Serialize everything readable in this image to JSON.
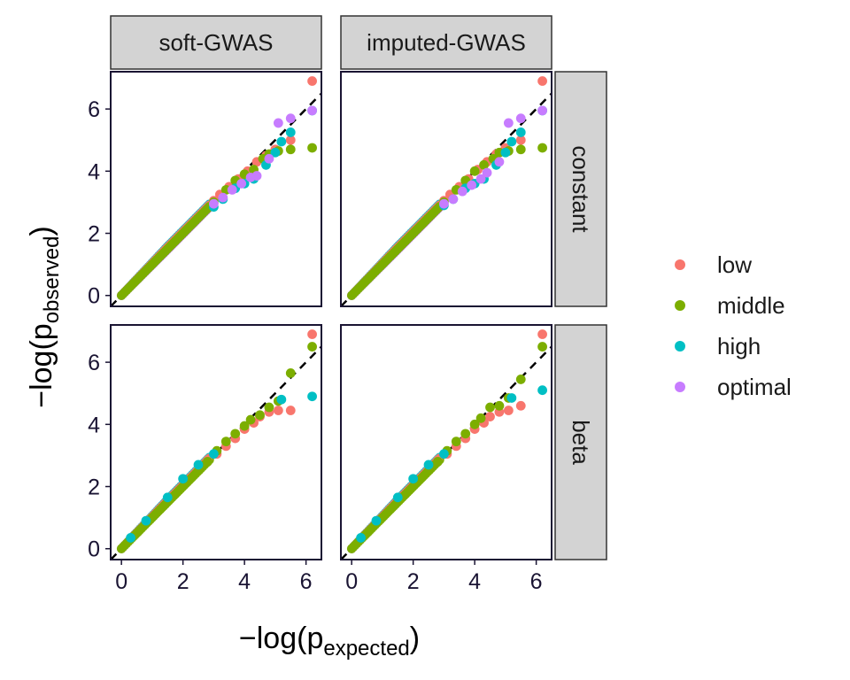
{
  "chart_data": {
    "type": "scatter",
    "title": "",
    "xlabel": "−log(p",
    "xlabel_sub": "expected",
    "xlabel_close": ")",
    "ylabel": "−log(p",
    "ylabel_sub": "observed",
    "ylabel_close": ")",
    "xlim": [
      -0.35,
      6.5
    ],
    "ylim": [
      -0.35,
      7.2
    ],
    "x_ticks": [
      0,
      2,
      4,
      6
    ],
    "y_ticks": [
      0,
      2,
      4,
      6
    ],
    "reference_line": "y = x",
    "grid": false,
    "legend_position": "right",
    "columns": [
      "soft-GWAS",
      "imputed-GWAS"
    ],
    "rows": [
      "constant",
      "beta"
    ],
    "series": [
      {
        "name": "low",
        "color": "#F8766D"
      },
      {
        "name": "middle",
        "color": "#7CAE00"
      },
      {
        "name": "high",
        "color": "#00BFC4"
      },
      {
        "name": "optimal",
        "color": "#C77CFF"
      }
    ],
    "panels": [
      {
        "column": "soft-GWAS",
        "row": "constant",
        "points": {
          "low": [
            [
              3.0,
              3.05
            ],
            [
              3.2,
              3.25
            ],
            [
              3.5,
              3.5
            ],
            [
              3.8,
              3.75
            ],
            [
              4.1,
              4.0
            ],
            [
              4.4,
              4.3
            ],
            [
              4.7,
              4.5
            ],
            [
              5.0,
              4.7
            ],
            [
              5.5,
              5.0
            ],
            [
              6.2,
              6.9
            ]
          ],
          "middle": [
            [
              3.0,
              3.0
            ],
            [
              3.4,
              3.4
            ],
            [
              3.7,
              3.7
            ],
            [
              4.0,
              3.9
            ],
            [
              4.3,
              4.05
            ],
            [
              4.6,
              4.4
            ],
            [
              4.8,
              4.55
            ],
            [
              5.1,
              4.65
            ],
            [
              5.5,
              4.7
            ],
            [
              6.2,
              4.75
            ]
          ],
          "high": [
            [
              3.0,
              2.85
            ],
            [
              3.3,
              3.1
            ],
            [
              3.7,
              3.45
            ],
            [
              4.0,
              3.6
            ],
            [
              4.3,
              3.75
            ],
            [
              4.7,
              4.2
            ],
            [
              5.0,
              4.6
            ],
            [
              5.2,
              4.95
            ],
            [
              5.5,
              5.25
            ],
            [
              6.2,
              5.95
            ]
          ],
          "optimal": [
            [
              3.0,
              2.95
            ],
            [
              3.3,
              3.15
            ],
            [
              3.6,
              3.4
            ],
            [
              3.9,
              3.6
            ],
            [
              4.2,
              3.8
            ],
            [
              4.4,
              3.85
            ],
            [
              4.8,
              4.4
            ],
            [
              5.1,
              5.55
            ],
            [
              5.5,
              5.7
            ],
            [
              6.2,
              5.95
            ]
          ]
        }
      },
      {
        "column": "imputed-GWAS",
        "row": "constant",
        "points": {
          "low": [
            [
              3.0,
              3.05
            ],
            [
              3.2,
              3.25
            ],
            [
              3.5,
              3.5
            ],
            [
              3.8,
              3.75
            ],
            [
              4.1,
              4.05
            ],
            [
              4.4,
              4.3
            ],
            [
              4.7,
              4.55
            ],
            [
              5.0,
              4.75
            ],
            [
              5.5,
              5.0
            ],
            [
              6.2,
              6.9
            ]
          ],
          "middle": [
            [
              3.0,
              3.0
            ],
            [
              3.4,
              3.4
            ],
            [
              3.7,
              3.7
            ],
            [
              4.0,
              4.0
            ],
            [
              4.3,
              4.2
            ],
            [
              4.6,
              4.4
            ],
            [
              4.8,
              4.6
            ],
            [
              5.1,
              4.65
            ],
            [
              5.5,
              4.7
            ],
            [
              6.2,
              4.75
            ]
          ],
          "high": [
            [
              3.0,
              2.9
            ],
            [
              3.3,
              3.1
            ],
            [
              3.7,
              3.45
            ],
            [
              4.0,
              3.6
            ],
            [
              4.3,
              3.75
            ],
            [
              4.7,
              4.2
            ],
            [
              5.0,
              4.6
            ],
            [
              5.2,
              4.95
            ],
            [
              5.5,
              5.25
            ],
            [
              6.2,
              5.95
            ]
          ],
          "optimal": [
            [
              3.0,
              2.95
            ],
            [
              3.3,
              3.1
            ],
            [
              3.6,
              3.35
            ],
            [
              3.9,
              3.55
            ],
            [
              4.2,
              3.75
            ],
            [
              4.4,
              3.95
            ],
            [
              4.8,
              4.3
            ],
            [
              5.1,
              5.55
            ],
            [
              5.5,
              5.7
            ],
            [
              6.2,
              5.95
            ]
          ]
        }
      },
      {
        "column": "soft-GWAS",
        "row": "beta",
        "points": {
          "low": [
            [
              2.8,
              2.85
            ],
            [
              3.1,
              3.05
            ],
            [
              3.4,
              3.3
            ],
            [
              3.7,
              3.55
            ],
            [
              4.0,
              3.85
            ],
            [
              4.3,
              4.05
            ],
            [
              4.5,
              4.25
            ],
            [
              4.8,
              4.4
            ],
            [
              5.1,
              4.45
            ],
            [
              5.5,
              4.45
            ],
            [
              6.2,
              6.9
            ]
          ],
          "middle": [
            [
              2.8,
              2.8
            ],
            [
              3.1,
              3.15
            ],
            [
              3.4,
              3.45
            ],
            [
              3.7,
              3.7
            ],
            [
              4.0,
              3.95
            ],
            [
              4.2,
              4.15
            ],
            [
              4.5,
              4.3
            ],
            [
              4.8,
              4.55
            ],
            [
              5.1,
              4.75
            ],
            [
              5.5,
              5.65
            ],
            [
              6.2,
              6.5
            ]
          ],
          "high": [
            [
              0.3,
              0.35
            ],
            [
              0.8,
              0.9
            ],
            [
              1.5,
              1.65
            ],
            [
              2.0,
              2.25
            ],
            [
              2.5,
              2.7
            ],
            [
              3.0,
              3.05
            ],
            [
              5.2,
              4.8
            ],
            [
              6.2,
              4.9
            ]
          ],
          "optimal": []
        }
      },
      {
        "column": "imputed-GWAS",
        "row": "beta",
        "points": {
          "low": [
            [
              2.8,
              2.85
            ],
            [
              3.1,
              3.05
            ],
            [
              3.4,
              3.3
            ],
            [
              3.7,
              3.55
            ],
            [
              4.0,
              3.85
            ],
            [
              4.3,
              4.05
            ],
            [
              4.5,
              4.25
            ],
            [
              4.8,
              4.4
            ],
            [
              5.1,
              4.45
            ],
            [
              5.5,
              4.6
            ],
            [
              6.2,
              6.9
            ]
          ],
          "middle": [
            [
              2.8,
              2.8
            ],
            [
              3.1,
              3.15
            ],
            [
              3.4,
              3.45
            ],
            [
              3.7,
              3.7
            ],
            [
              4.0,
              4.0
            ],
            [
              4.2,
              4.2
            ],
            [
              4.5,
              4.55
            ],
            [
              4.8,
              4.6
            ],
            [
              5.1,
              4.85
            ],
            [
              5.5,
              5.45
            ],
            [
              6.2,
              6.5
            ]
          ],
          "high": [
            [
              0.3,
              0.35
            ],
            [
              0.8,
              0.9
            ],
            [
              1.5,
              1.65
            ],
            [
              2.0,
              2.25
            ],
            [
              2.5,
              2.7
            ],
            [
              3.0,
              3.05
            ],
            [
              5.2,
              4.85
            ],
            [
              6.2,
              5.1
            ]
          ],
          "optimal": []
        }
      }
    ]
  }
}
